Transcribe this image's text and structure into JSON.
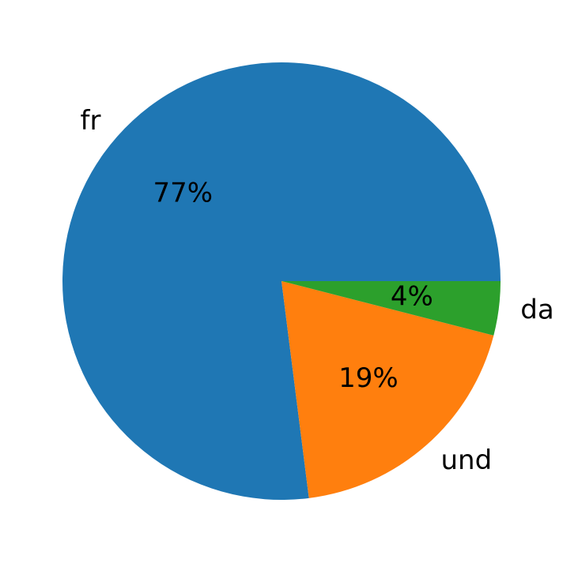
{
  "chart_data": {
    "type": "pie",
    "categories": [
      "fr",
      "und",
      "da"
    ],
    "values": [
      77,
      19,
      4
    ],
    "value_labels": [
      "77%",
      "19%",
      "4%"
    ],
    "colors": [
      "#1f77b4",
      "#ff7f0e",
      "#2ca02c"
    ]
  }
}
